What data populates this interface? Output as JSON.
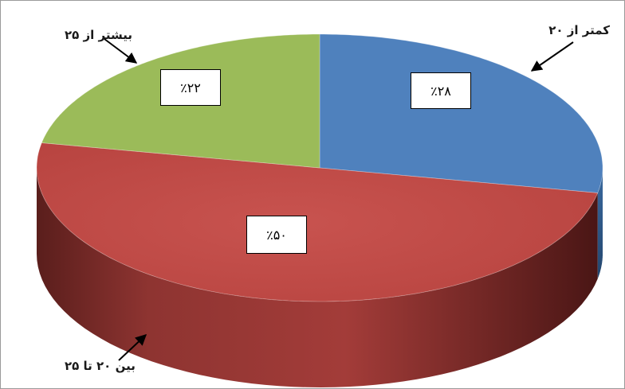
{
  "chart_data": {
    "type": "pie",
    "style": "3d",
    "categories": [
      "کمتر از ۲۰",
      "بین ۲۰ تا ۲۵",
      "بیشتر از ۲۵"
    ],
    "values": [
      28,
      50,
      22
    ],
    "value_labels": [
      "٪۲۸",
      "٪۵۰",
      "٪۲۲"
    ],
    "colors": [
      "#4f81bd",
      "#c0504d",
      "#9bbb59"
    ],
    "side_colors": [
      "#2f5a8a",
      "#7a2a28",
      "#5f7a32"
    ],
    "title": "",
    "legend": "none"
  }
}
